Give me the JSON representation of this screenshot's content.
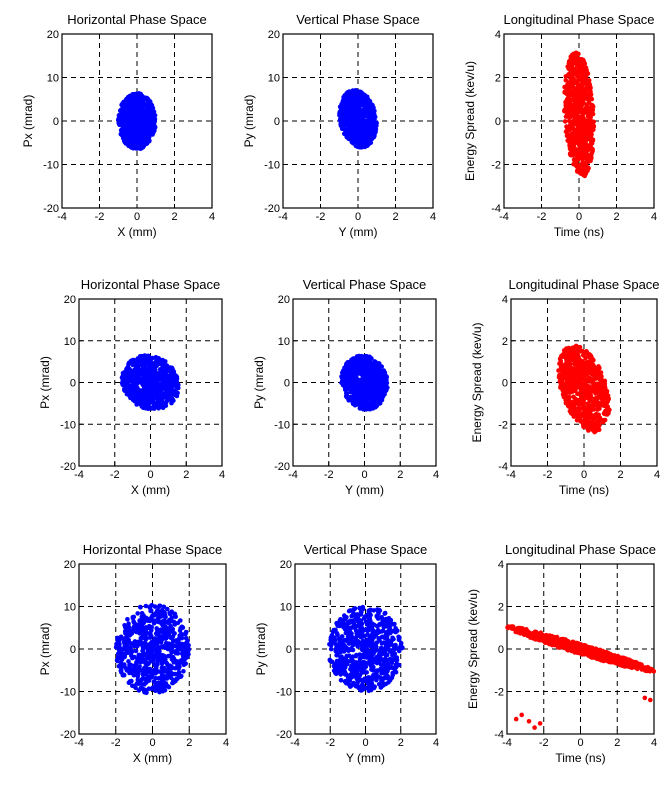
{
  "chart_data": [
    {
      "type": "scatter",
      "title": "Horizontal Phase Space",
      "xlabel": "X (mm)",
      "ylabel": "Px (mrad)",
      "xlim": [
        -4,
        4
      ],
      "ylim": [
        -20,
        20
      ],
      "xticks": [
        "-4",
        "-2",
        "0",
        "2",
        "4"
      ],
      "yticks": [
        "-20",
        "-10",
        "0",
        "10",
        "20"
      ],
      "grid": true,
      "color": "#0000ff",
      "cloud": {
        "center": [
          0,
          0
        ],
        "half_width": [
          1.0,
          6.5
        ],
        "tilt": 0
      }
    },
    {
      "type": "scatter",
      "title": "Vertical Phase Space",
      "xlabel": "Y (mm)",
      "ylabel": "Py (mrad)",
      "xlim": [
        -4,
        4
      ],
      "ylim": [
        -20,
        20
      ],
      "xticks": [
        "-4",
        "-2",
        "0",
        "2",
        "4"
      ],
      "yticks": [
        "-20",
        "-10",
        "0",
        "10",
        "20"
      ],
      "grid": true,
      "color": "#0000ff",
      "cloud": {
        "center": [
          0,
          0.5
        ],
        "half_width": [
          1.0,
          6.5
        ],
        "tilt": -1.2
      }
    },
    {
      "type": "scatter",
      "title": "Longitudinal Phase Space",
      "xlabel": "Time (ns)",
      "ylabel": "Energy Spread (kev/u)",
      "xlim": [
        -4,
        4
      ],
      "ylim": [
        -4,
        4
      ],
      "xticks": [
        "-4",
        "-2",
        "0",
        "2",
        "4"
      ],
      "yticks": [
        "-4",
        "-2",
        "0",
        "2",
        "4"
      ],
      "grid": true,
      "color": "#ff0000",
      "cloud": {
        "center": [
          0,
          0.3
        ],
        "half_width": [
          0.8,
          2.8
        ],
        "tilt": -0.8
      }
    },
    {
      "type": "scatter",
      "title": "Horizontal Phase Space",
      "xlabel": "X (mm)",
      "ylabel": "Px (mrad)",
      "xlim": [
        -4,
        4
      ],
      "ylim": [
        -20,
        20
      ],
      "xticks": [
        "-4",
        "-2",
        "0",
        "2",
        "4"
      ],
      "yticks": [
        "-20",
        "-10",
        "0",
        "10",
        "20"
      ],
      "grid": true,
      "color": "#0000ff",
      "cloud": {
        "center": [
          0,
          0
        ],
        "half_width": [
          1.6,
          6.5
        ],
        "tilt": -0.5
      }
    },
    {
      "type": "scatter",
      "title": "Vertical Phase Space",
      "xlabel": "Y (mm)",
      "ylabel": "Py (mrad)",
      "xlim": [
        -4,
        4
      ],
      "ylim": [
        -20,
        20
      ],
      "xticks": [
        "-4",
        "-2",
        "0",
        "2",
        "4"
      ],
      "yticks": [
        "-20",
        "-10",
        "0",
        "10",
        "20"
      ],
      "grid": true,
      "color": "#0000ff",
      "cloud": {
        "center": [
          0,
          0
        ],
        "half_width": [
          1.3,
          6.5
        ],
        "tilt": -0.5
      }
    },
    {
      "type": "scatter",
      "title": "Longitudinal Phase Space",
      "xlabel": "Time (ns)",
      "ylabel": "Energy Spread (kev/u)",
      "xlim": [
        -4,
        4
      ],
      "ylim": [
        -4,
        4
      ],
      "xticks": [
        "-4",
        "-2",
        "0",
        "2",
        "4"
      ],
      "yticks": [
        "-4",
        "-2",
        "0",
        "2",
        "4"
      ],
      "grid": true,
      "color": "#ff0000",
      "cloud": {
        "center": [
          0,
          -0.3
        ],
        "half_width": [
          1.4,
          1.9
        ],
        "tilt": -0.6
      }
    },
    {
      "type": "scatter",
      "title": "Horizontal Phase Space",
      "xlabel": "X (mm)",
      "ylabel": "Px (mrad)",
      "xlim": [
        -4,
        4
      ],
      "ylim": [
        -20,
        20
      ],
      "xticks": [
        "-4",
        "-2",
        "0",
        "2",
        "4"
      ],
      "yticks": [
        "-20",
        "-10",
        "0",
        "10",
        "20"
      ],
      "grid": true,
      "color": "#0000ff",
      "cloud": {
        "center": [
          0,
          0
        ],
        "half_width": [
          2.0,
          10.5
        ],
        "tilt": 0
      }
    },
    {
      "type": "scatter",
      "title": "Vertical Phase Space",
      "xlabel": "Y (mm)",
      "ylabel": "Py (mrad)",
      "xlim": [
        -4,
        4
      ],
      "ylim": [
        -20,
        20
      ],
      "xticks": [
        "-4",
        "-2",
        "0",
        "2",
        "4"
      ],
      "yticks": [
        "-20",
        "-10",
        "0",
        "10",
        "20"
      ],
      "grid": true,
      "color": "#0000ff",
      "cloud": {
        "center": [
          0,
          0
        ],
        "half_width": [
          2.1,
          10.0
        ],
        "tilt": 0
      }
    },
    {
      "type": "scatter",
      "title": "Longitudinal Phase Space",
      "xlabel": "Time (ns)",
      "ylabel": "Energy Spread (kev/u)",
      "xlim": [
        -4,
        4
      ],
      "ylim": [
        -4,
        4
      ],
      "xticks": [
        "-4",
        "-2",
        "0",
        "2",
        "4"
      ],
      "yticks": [
        "-4",
        "-2",
        "0",
        "2",
        "4"
      ],
      "grid": true,
      "color": "#ff0000",
      "cloud": {
        "center": [
          0,
          0
        ],
        "half_width": [
          4.0,
          0.25
        ],
        "tilt": -0.26
      },
      "extra_points": [
        [
          -3.5,
          -3.3
        ],
        [
          -3.2,
          -3.1
        ],
        [
          -2.8,
          -3.4
        ],
        [
          -2.5,
          -3.7
        ],
        [
          -2.2,
          -3.5
        ],
        [
          3.5,
          -2.3
        ],
        [
          3.8,
          -2.4
        ]
      ]
    }
  ]
}
